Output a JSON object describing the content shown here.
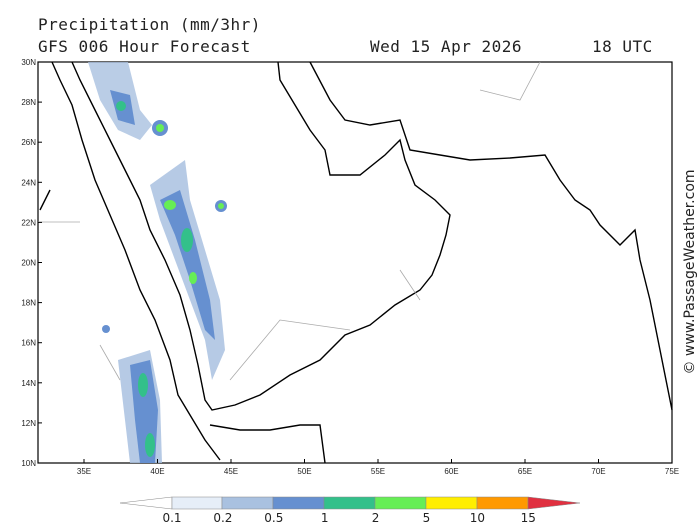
{
  "header": {
    "title": "Precipitation (mm/3hr)",
    "subtitle": "GFS 006 Hour Forecast",
    "date": "Wed 15 Apr 2026",
    "time": "18 UTC"
  },
  "map": {
    "lat_labels": [
      "30N",
      "28N",
      "26N",
      "24N",
      "22N",
      "20N",
      "18N",
      "16N",
      "14N",
      "12N",
      "10N"
    ],
    "lon_labels": [
      "35E",
      "40E",
      "45E",
      "50E",
      "55E",
      "60E",
      "65E",
      "70E",
      "75E"
    ]
  },
  "legend": {
    "labels": [
      "0.1",
      "0.2",
      "0.5",
      "1",
      "2",
      "5",
      "10",
      "15"
    ]
  },
  "credit": "© www.PassageWeather.com"
}
